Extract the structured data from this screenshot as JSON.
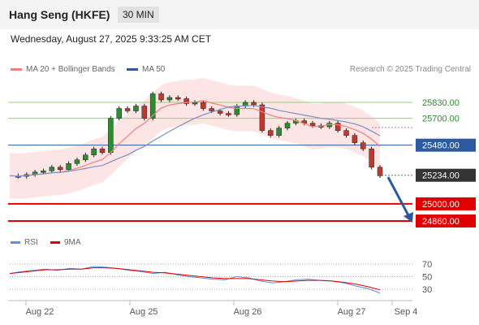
{
  "header": {
    "title": "Hang Seng (HKFE)",
    "timeframe": "30 MIN"
  },
  "datetime": "Wednesday, August 27, 2025 9:33:25 AM CET",
  "legend": {
    "ma20": "MA 20 + Bollinger Bands",
    "ma50": "MA 50",
    "rsi": "RSI",
    "ma9": "9MA",
    "ma20_color": "#f08080",
    "ma50_color": "#2c5aa0",
    "rsi_color": "#5b8fd9",
    "ma9_color": "#e00000"
  },
  "credit": "Research © 2025 Trading Central",
  "chart_data": {
    "type": "candlestick",
    "levels": [
      {
        "value": 25830,
        "label": "25830.00",
        "kind": "target"
      },
      {
        "value": 25700,
        "label": "25700.00",
        "kind": "target"
      },
      {
        "value": 25480,
        "label": "25480.00",
        "kind": "pivot"
      },
      {
        "value": 25234,
        "label": "25234.00",
        "kind": "last"
      },
      {
        "value": 25000,
        "label": "25000.00",
        "kind": "support"
      },
      {
        "value": 24860,
        "label": "24860.00",
        "kind": "support"
      }
    ],
    "close_path": [
      25230,
      25225,
      25240,
      25260,
      25270,
      25300,
      25280,
      25330,
      25360,
      25400,
      25450,
      25420,
      25700,
      25780,
      25760,
      25800,
      25700,
      25900,
      25850,
      25870,
      25860,
      25820,
      25830,
      25780,
      25760,
      25740,
      25730,
      25800,
      25830,
      25810,
      25600,
      25560,
      25620,
      25660,
      25680,
      25660,
      25640,
      25630,
      25660,
      25600,
      25560,
      25500,
      25450,
      25300,
      25230
    ],
    "x_ticks": [
      "Aug 22",
      "Aug 25",
      "Aug 26",
      "Aug 27",
      "Sep 4"
    ],
    "rsi_ticks": [
      "70",
      "50",
      "30"
    ],
    "rsi_path": [
      55,
      58,
      60,
      62,
      60,
      63,
      62,
      66,
      65,
      63,
      60,
      58,
      55,
      57,
      53,
      50,
      48,
      46,
      45,
      50,
      48,
      43,
      40,
      42,
      45,
      46,
      44,
      43,
      40,
      35,
      31,
      24
    ],
    "ma9_path": [
      55,
      57,
      59,
      61,
      61,
      62,
      62,
      64,
      64,
      63,
      61,
      59,
      57,
      56,
      54,
      52,
      50,
      48,
      47,
      47,
      47,
      45,
      43,
      42,
      43,
      44,
      44,
      43,
      41,
      38,
      34,
      29
    ]
  }
}
